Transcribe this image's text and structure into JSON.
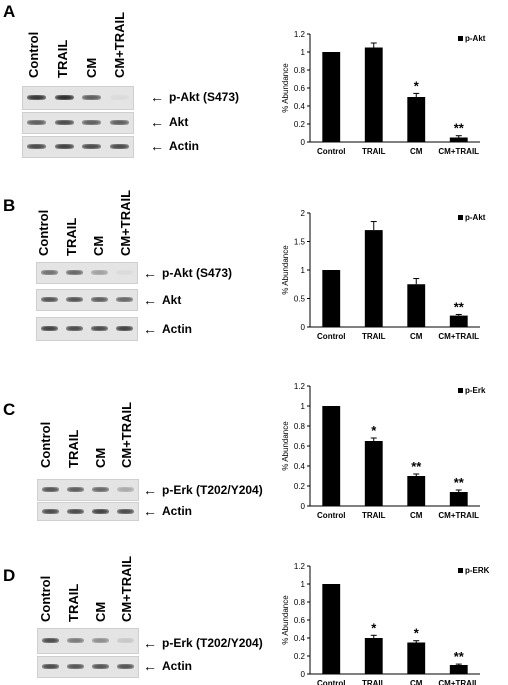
{
  "colors": {
    "bar": "#000000",
    "blot_bg": "#e4e4e4",
    "band": "#222222"
  },
  "panels": [
    {
      "letter": "A",
      "lanes": [
        "Control",
        "TRAIL",
        "CM",
        "CM+TRAIL"
      ],
      "blots": [
        {
          "label": "p-Akt (S473)",
          "intensities": [
            0.9,
            0.95,
            0.7,
            0.05
          ]
        },
        {
          "label": "Akt",
          "intensities": [
            0.7,
            0.8,
            0.7,
            0.7
          ]
        },
        {
          "label": "Actin",
          "intensities": [
            0.8,
            0.85,
            0.8,
            0.8
          ]
        }
      ]
    },
    {
      "letter": "B",
      "lanes": [
        "Control",
        "TRAIL",
        "CM",
        "CM+TRAIL"
      ],
      "blots": [
        {
          "label": "p-Akt (S473)",
          "intensities": [
            0.6,
            0.65,
            0.35,
            0.05
          ]
        },
        {
          "label": "Akt",
          "intensities": [
            0.75,
            0.75,
            0.7,
            0.65
          ]
        },
        {
          "label": "Actin",
          "intensities": [
            0.85,
            0.8,
            0.8,
            0.85
          ]
        }
      ]
    },
    {
      "letter": "C",
      "lanes": [
        "Control",
        "TRAIL",
        "CM",
        "CM+TRAIL"
      ],
      "blots": [
        {
          "label": "p-Erk (T202/Y204)",
          "intensities": [
            0.75,
            0.7,
            0.65,
            0.3
          ]
        },
        {
          "label": "Actin",
          "intensities": [
            0.8,
            0.8,
            0.85,
            0.8
          ]
        }
      ]
    },
    {
      "letter": "D",
      "lanes": [
        "Control",
        "TRAIL",
        "CM",
        "CM+TRAIL"
      ],
      "blots": [
        {
          "label": "p-Erk (T202/Y204)",
          "intensities": [
            0.8,
            0.55,
            0.45,
            0.15
          ]
        },
        {
          "label": "Actin",
          "intensities": [
            0.8,
            0.75,
            0.75,
            0.75
          ]
        }
      ]
    }
  ],
  "chart_data": [
    {
      "type": "bar",
      "categories": [
        "Control",
        "TRAIL",
        "CM",
        "CM+TRAIL"
      ],
      "series": [
        {
          "name": "p-Akt",
          "values": [
            1.0,
            1.05,
            0.5,
            0.05
          ],
          "errors": [
            0,
            0.05,
            0.04,
            0.02
          ]
        }
      ],
      "significance": [
        "",
        "",
        "*",
        "**"
      ],
      "ylabel": "% Abundance",
      "ylim": [
        0,
        1.2
      ],
      "yticks": [
        "0",
        "0.2",
        "0.4",
        "0.6",
        "0.8",
        "1",
        "1.2"
      ],
      "legend": "top-right",
      "grid": false
    },
    {
      "type": "bar",
      "categories": [
        "Control",
        "TRAIL",
        "CM",
        "CM+TRAIL"
      ],
      "series": [
        {
          "name": "p-Akt",
          "values": [
            1.0,
            1.7,
            0.75,
            0.2
          ],
          "errors": [
            0,
            0.15,
            0.1,
            0.02
          ]
        }
      ],
      "significance": [
        "",
        "",
        "",
        "**"
      ],
      "ylabel": "% Abundance",
      "ylim": [
        0,
        2
      ],
      "yticks": [
        "0",
        "0.5",
        "1",
        "1.5",
        "2"
      ],
      "legend": "top-right",
      "grid": false
    },
    {
      "type": "bar",
      "categories": [
        "Control",
        "TRAIL",
        "CM",
        "CM+TRAIL"
      ],
      "series": [
        {
          "name": "p-Erk",
          "values": [
            1.0,
            0.65,
            0.3,
            0.14
          ],
          "errors": [
            0,
            0.03,
            0.02,
            0.02
          ]
        }
      ],
      "significance": [
        "",
        "*",
        "**",
        "**"
      ],
      "ylabel": "% Abundance",
      "ylim": [
        0,
        1.2
      ],
      "yticks": [
        "0",
        "0.2",
        "0.4",
        "0.6",
        "0.8",
        "1",
        "1.2"
      ],
      "legend": "top-right",
      "grid": false
    },
    {
      "type": "bar",
      "categories": [
        "Control",
        "TRAIL",
        "CM",
        "CM+TRAIL"
      ],
      "series": [
        {
          "name": "p-ERK",
          "values": [
            1.0,
            0.4,
            0.35,
            0.1
          ],
          "errors": [
            0,
            0.03,
            0.02,
            0.01
          ]
        }
      ],
      "significance": [
        "",
        "*",
        "*",
        "**"
      ],
      "ylabel": "% Abundance",
      "ylim": [
        0,
        1.2
      ],
      "yticks": [
        "0",
        "0.2",
        "0.4",
        "0.6",
        "0.8",
        "1",
        "1.2"
      ],
      "legend": "top-right",
      "grid": false
    }
  ]
}
